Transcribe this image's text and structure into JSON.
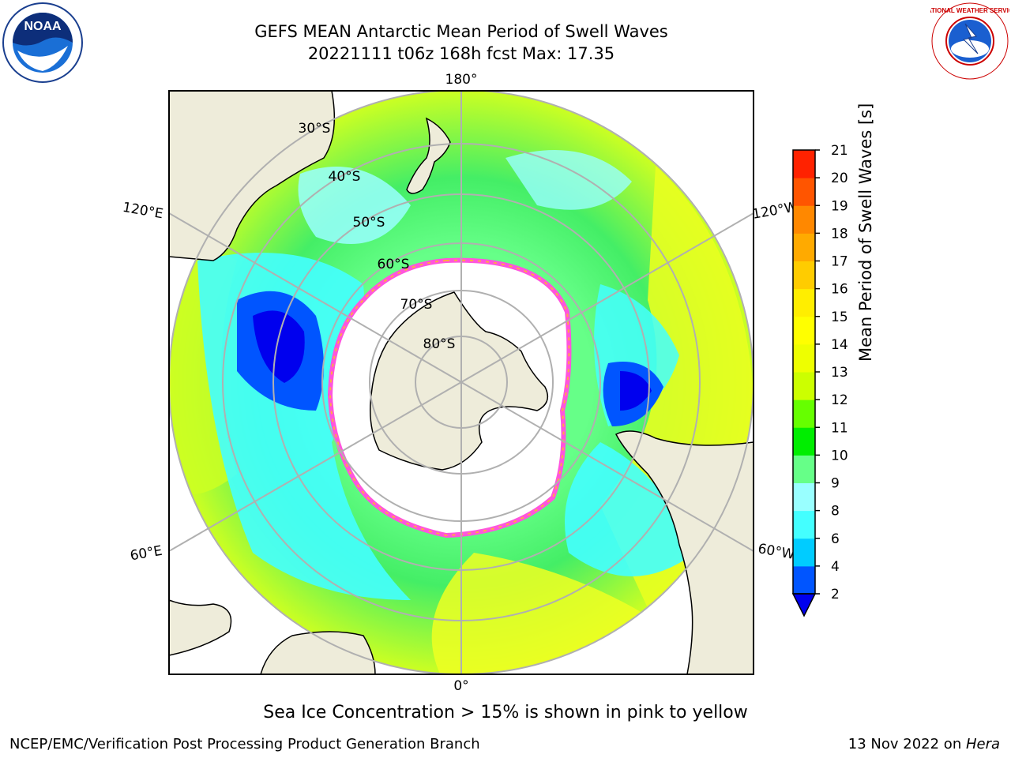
{
  "title": {
    "line1": "GEFS MEAN Antarctic Mean Period of Swell Waves",
    "line2": "20221111 t06z 168h fcst   Max: 17.35"
  },
  "map": {
    "projection": "south polar stereographic",
    "longitude_labels": {
      "top": "180°",
      "bottom": "0°",
      "left_upper": "120°E",
      "left_lower": "60°E",
      "right_upper": "120°W",
      "right_lower": "60°W"
    },
    "latitude_labels": [
      "30°S",
      "40°S",
      "50°S",
      "60°S",
      "70°S",
      "80°S"
    ],
    "colors": {
      "land": "#eeecda",
      "ice": "#ffffff",
      "ice_edge": "#ff55dd",
      "grid": "#b0b0b0"
    }
  },
  "colorbar": {
    "label": "Mean Period of Swell Waves [s]",
    "ticks": [
      "2",
      "4",
      "6",
      "8",
      "9",
      "10",
      "11",
      "12",
      "13",
      "14",
      "15",
      "16",
      "17",
      "18",
      "19",
      "20",
      "21"
    ],
    "colors": [
      "#0055ff",
      "#00ccff",
      "#44ffff",
      "#99ffff",
      "#66ff88",
      "#00ee00",
      "#66ff00",
      "#ccff00",
      "#eeff00",
      "#ffff00",
      "#ffee00",
      "#ffcc00",
      "#ffaa00",
      "#ff8800",
      "#ff5500",
      "#ff2200"
    ],
    "under_color": "#0000ee"
  },
  "footer": {
    "note": "Sea Ice Concentration > 15% is shown in pink to yellow",
    "left": "NCEP/EMC/Verification Post Processing Product Generation Branch",
    "date": "13 Nov 2022 on ",
    "machine": "Hera"
  },
  "logos": {
    "noaa": "NOAA",
    "nws": "NATIONAL WEATHER SERVICE"
  }
}
